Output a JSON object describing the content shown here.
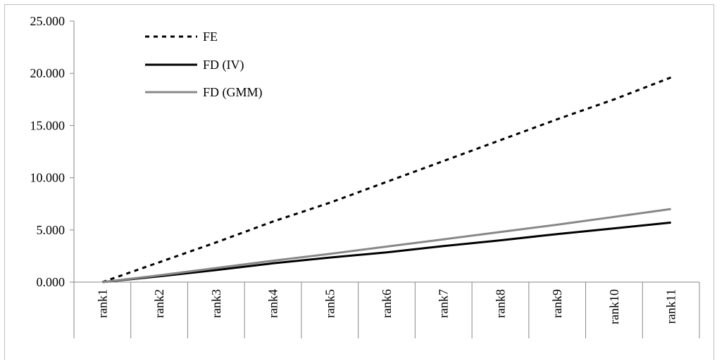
{
  "chart_data": {
    "type": "line",
    "categories": [
      "rank1",
      "rank2",
      "rank3",
      "rank4",
      "rank5",
      "rank6",
      "rank7",
      "rank8",
      "rank9",
      "rank10",
      "rank11"
    ],
    "series": [
      {
        "name": "FE",
        "values": [
          0.0,
          1.9,
          3.8,
          5.8,
          7.6,
          9.6,
          11.6,
          13.6,
          15.6,
          17.5,
          19.6
        ],
        "color": "#000000",
        "style": "dashed"
      },
      {
        "name": "FD (IV)",
        "values": [
          0.0,
          0.55,
          1.15,
          1.8,
          2.35,
          2.85,
          3.45,
          4.0,
          4.6,
          5.15,
          5.7
        ],
        "color": "#000000",
        "style": "solid"
      },
      {
        "name": "FD (GMM)",
        "values": [
          0.0,
          0.65,
          1.35,
          2.05,
          2.7,
          3.4,
          4.1,
          4.8,
          5.5,
          6.25,
          7.0
        ],
        "color": "#888888",
        "style": "solid"
      }
    ],
    "yticks": [
      "0.000",
      "5.000",
      "10.000",
      "15.000",
      "20.000",
      "25.000"
    ],
    "ylim": [
      0,
      25
    ],
    "grid": false,
    "legend_position": "top-left",
    "title": "",
    "xlabel": "",
    "ylabel": ""
  }
}
